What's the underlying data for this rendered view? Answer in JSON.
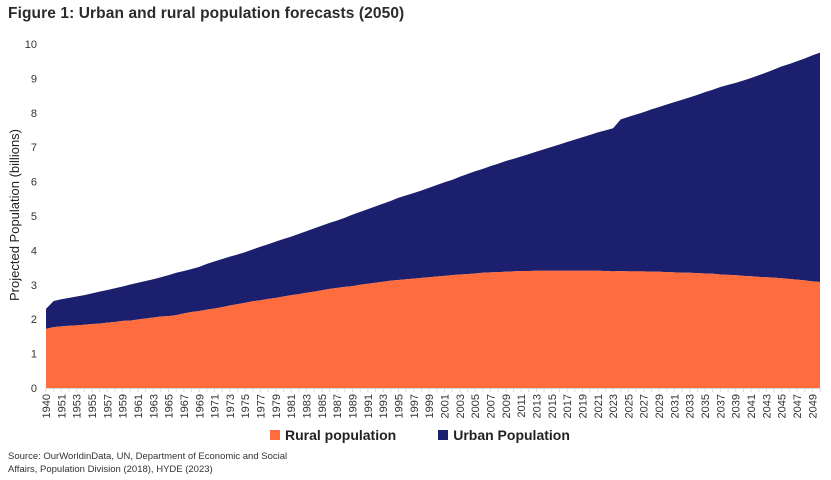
{
  "title": "Figure 1: Urban and rural population forecasts (2050)",
  "source": "Source: OurWorldinData, UN, Department of Economic and Social Affairs, Population Division (2018), HYDE (2023)",
  "colors": {
    "rural": "#FF6D3F",
    "urban": "#1B1F6E"
  },
  "legend": {
    "rural": "Rural population",
    "urban": "Urban Population"
  },
  "chart_data": {
    "type": "area",
    "stacked": true,
    "title": "Figure 1: Urban and rural population forecasts (2050)",
    "xlabel": "",
    "ylabel": "Projected Population (billions)",
    "ylim": [
      0,
      10
    ],
    "yticks": [
      0,
      1,
      2,
      3,
      4,
      5,
      6,
      7,
      8,
      9,
      10
    ],
    "grid": false,
    "legend_position": "bottom-center",
    "x": [
      1940,
      1950,
      1951,
      1952,
      1953,
      1954,
      1955,
      1956,
      1957,
      1958,
      1959,
      1960,
      1961,
      1962,
      1963,
      1964,
      1965,
      1966,
      1967,
      1968,
      1969,
      1970,
      1971,
      1972,
      1973,
      1974,
      1975,
      1976,
      1977,
      1978,
      1979,
      1980,
      1981,
      1982,
      1983,
      1984,
      1985,
      1986,
      1987,
      1988,
      1989,
      1990,
      1991,
      1992,
      1993,
      1994,
      1995,
      1996,
      1997,
      1998,
      1999,
      2000,
      2001,
      2002,
      2003,
      2004,
      2005,
      2006,
      2007,
      2008,
      2009,
      2010,
      2011,
      2012,
      2013,
      2014,
      2015,
      2016,
      2017,
      2018,
      2019,
      2020,
      2021,
      2022,
      2023,
      2024,
      2025,
      2026,
      2027,
      2028,
      2029,
      2030,
      2031,
      2032,
      2033,
      2034,
      2035,
      2036,
      2037,
      2038,
      2039,
      2040,
      2041,
      2042,
      2043,
      2044,
      2045,
      2046,
      2047,
      2048,
      2049,
      2050
    ],
    "x_tick_labels": [
      "1940",
      "1951",
      "1953",
      "1955",
      "1957",
      "1959",
      "1961",
      "1963",
      "1965",
      "1967",
      "1969",
      "1971",
      "1973",
      "1975",
      "1977",
      "1979",
      "1981",
      "1983",
      "1985",
      "1987",
      "1989",
      "1991",
      "1993",
      "1995",
      "1997",
      "1999",
      "2001",
      "2003",
      "2005",
      "2007",
      "2009",
      "2011",
      "2013",
      "2015",
      "2017",
      "2019",
      "2021",
      "2023",
      "2025",
      "2027",
      "2029",
      "2031",
      "2033",
      "2035",
      "2037",
      "2039",
      "2041",
      "2043",
      "2045",
      "2047",
      "2049"
    ],
    "series": [
      {
        "name": "Rural population",
        "values": [
          1.72,
          1.77,
          1.79,
          1.81,
          1.82,
          1.84,
          1.86,
          1.87,
          1.9,
          1.92,
          1.95,
          1.96,
          1.99,
          2.02,
          2.05,
          2.08,
          2.09,
          2.12,
          2.17,
          2.21,
          2.24,
          2.28,
          2.31,
          2.35,
          2.4,
          2.44,
          2.48,
          2.52,
          2.55,
          2.59,
          2.62,
          2.66,
          2.7,
          2.73,
          2.77,
          2.8,
          2.84,
          2.88,
          2.91,
          2.94,
          2.96,
          3.0,
          3.03,
          3.06,
          3.09,
          3.12,
          3.14,
          3.16,
          3.18,
          3.2,
          3.22,
          3.24,
          3.26,
          3.28,
          3.3,
          3.31,
          3.33,
          3.35,
          3.36,
          3.37,
          3.38,
          3.39,
          3.4,
          3.4,
          3.41,
          3.41,
          3.41,
          3.41,
          3.41,
          3.41,
          3.41,
          3.41,
          3.41,
          3.4,
          3.39,
          3.4,
          3.39,
          3.39,
          3.39,
          3.38,
          3.38,
          3.37,
          3.36,
          3.35,
          3.35,
          3.34,
          3.33,
          3.32,
          3.3,
          3.29,
          3.28,
          3.26,
          3.25,
          3.23,
          3.22,
          3.21,
          3.19,
          3.17,
          3.15,
          3.13,
          3.1,
          3.08
        ]
      },
      {
        "name": "Urban Population",
        "values": [
          0.58,
          0.76,
          0.79,
          0.81,
          0.84,
          0.86,
          0.89,
          0.93,
          0.95,
          0.98,
          1.0,
          1.05,
          1.07,
          1.09,
          1.11,
          1.14,
          1.19,
          1.23,
          1.23,
          1.25,
          1.28,
          1.33,
          1.37,
          1.4,
          1.42,
          1.44,
          1.47,
          1.51,
          1.56,
          1.59,
          1.64,
          1.67,
          1.7,
          1.75,
          1.79,
          1.84,
          1.88,
          1.92,
          1.96,
          2.01,
          2.08,
          2.12,
          2.17,
          2.22,
          2.27,
          2.32,
          2.39,
          2.44,
          2.49,
          2.54,
          2.6,
          2.66,
          2.72,
          2.77,
          2.84,
          2.91,
          2.97,
          3.02,
          3.09,
          3.15,
          3.22,
          3.27,
          3.33,
          3.4,
          3.46,
          3.53,
          3.6,
          3.67,
          3.74,
          3.81,
          3.88,
          3.95,
          4.02,
          4.09,
          4.16,
          4.41,
          4.49,
          4.56,
          4.63,
          4.72,
          4.79,
          4.87,
          4.95,
          5.03,
          5.1,
          5.18,
          5.27,
          5.35,
          5.45,
          5.52,
          5.59,
          5.68,
          5.76,
          5.86,
          5.95,
          6.05,
          6.16,
          6.25,
          6.35,
          6.45,
          6.57,
          6.67
        ]
      }
    ]
  }
}
